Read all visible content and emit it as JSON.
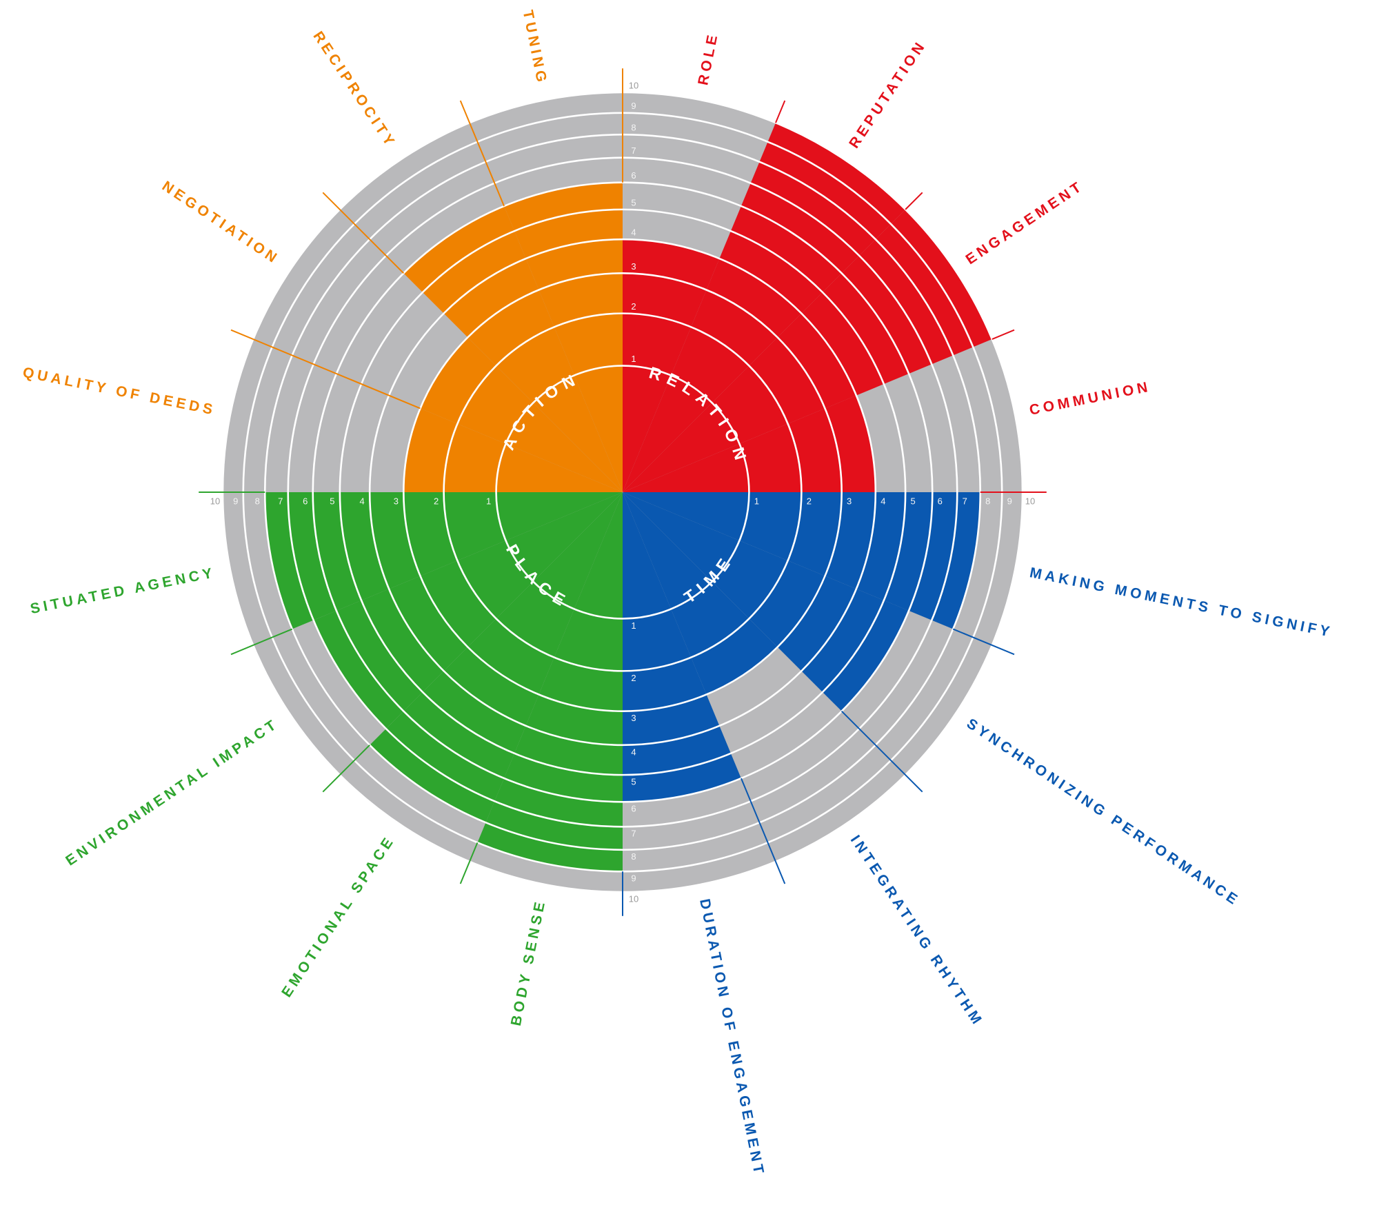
{
  "chart_data": {
    "type": "polar-area",
    "radial_scale": "sqrt",
    "grid": true,
    "ylim": [
      0,
      10
    ],
    "yticks": [
      1,
      2,
      3,
      4,
      5,
      6,
      7,
      8,
      9,
      10
    ],
    "series": [
      {
        "name": "RELATION",
        "color": "#e3101b",
        "categories": [
          "ROLE",
          "REPUTATION",
          "ENGAGEMENT",
          "COMMUNION"
        ],
        "values": [
          4,
          10,
          10,
          4
        ]
      },
      {
        "name": "TIME",
        "color": "#0a58b0",
        "categories": [
          "MAKING MOMENTS TO SIGNIFY",
          "SYNCHRONIZING PERFORMANCE",
          "INTEGRATING RHYTHM",
          "DURATION OF ENGAGEMENT"
        ],
        "values": [
          8,
          6,
          3,
          6
        ]
      },
      {
        "name": "PLACE",
        "color": "#2ea52e",
        "categories": [
          "BODY SENSE",
          "EMOTIONAL SPACE",
          "ENVIRONMENTAL IMPACT",
          "SITUATED AGENCY"
        ],
        "values": [
          9,
          8,
          7,
          8
        ]
      },
      {
        "name": "ACTION",
        "color": "#ef8200",
        "categories": [
          "QUALITY OF DEEDS",
          "NEGOTIATION",
          "RECIPROCITY",
          "TUNING"
        ],
        "values": [
          3,
          3,
          6,
          6
        ]
      }
    ]
  }
}
